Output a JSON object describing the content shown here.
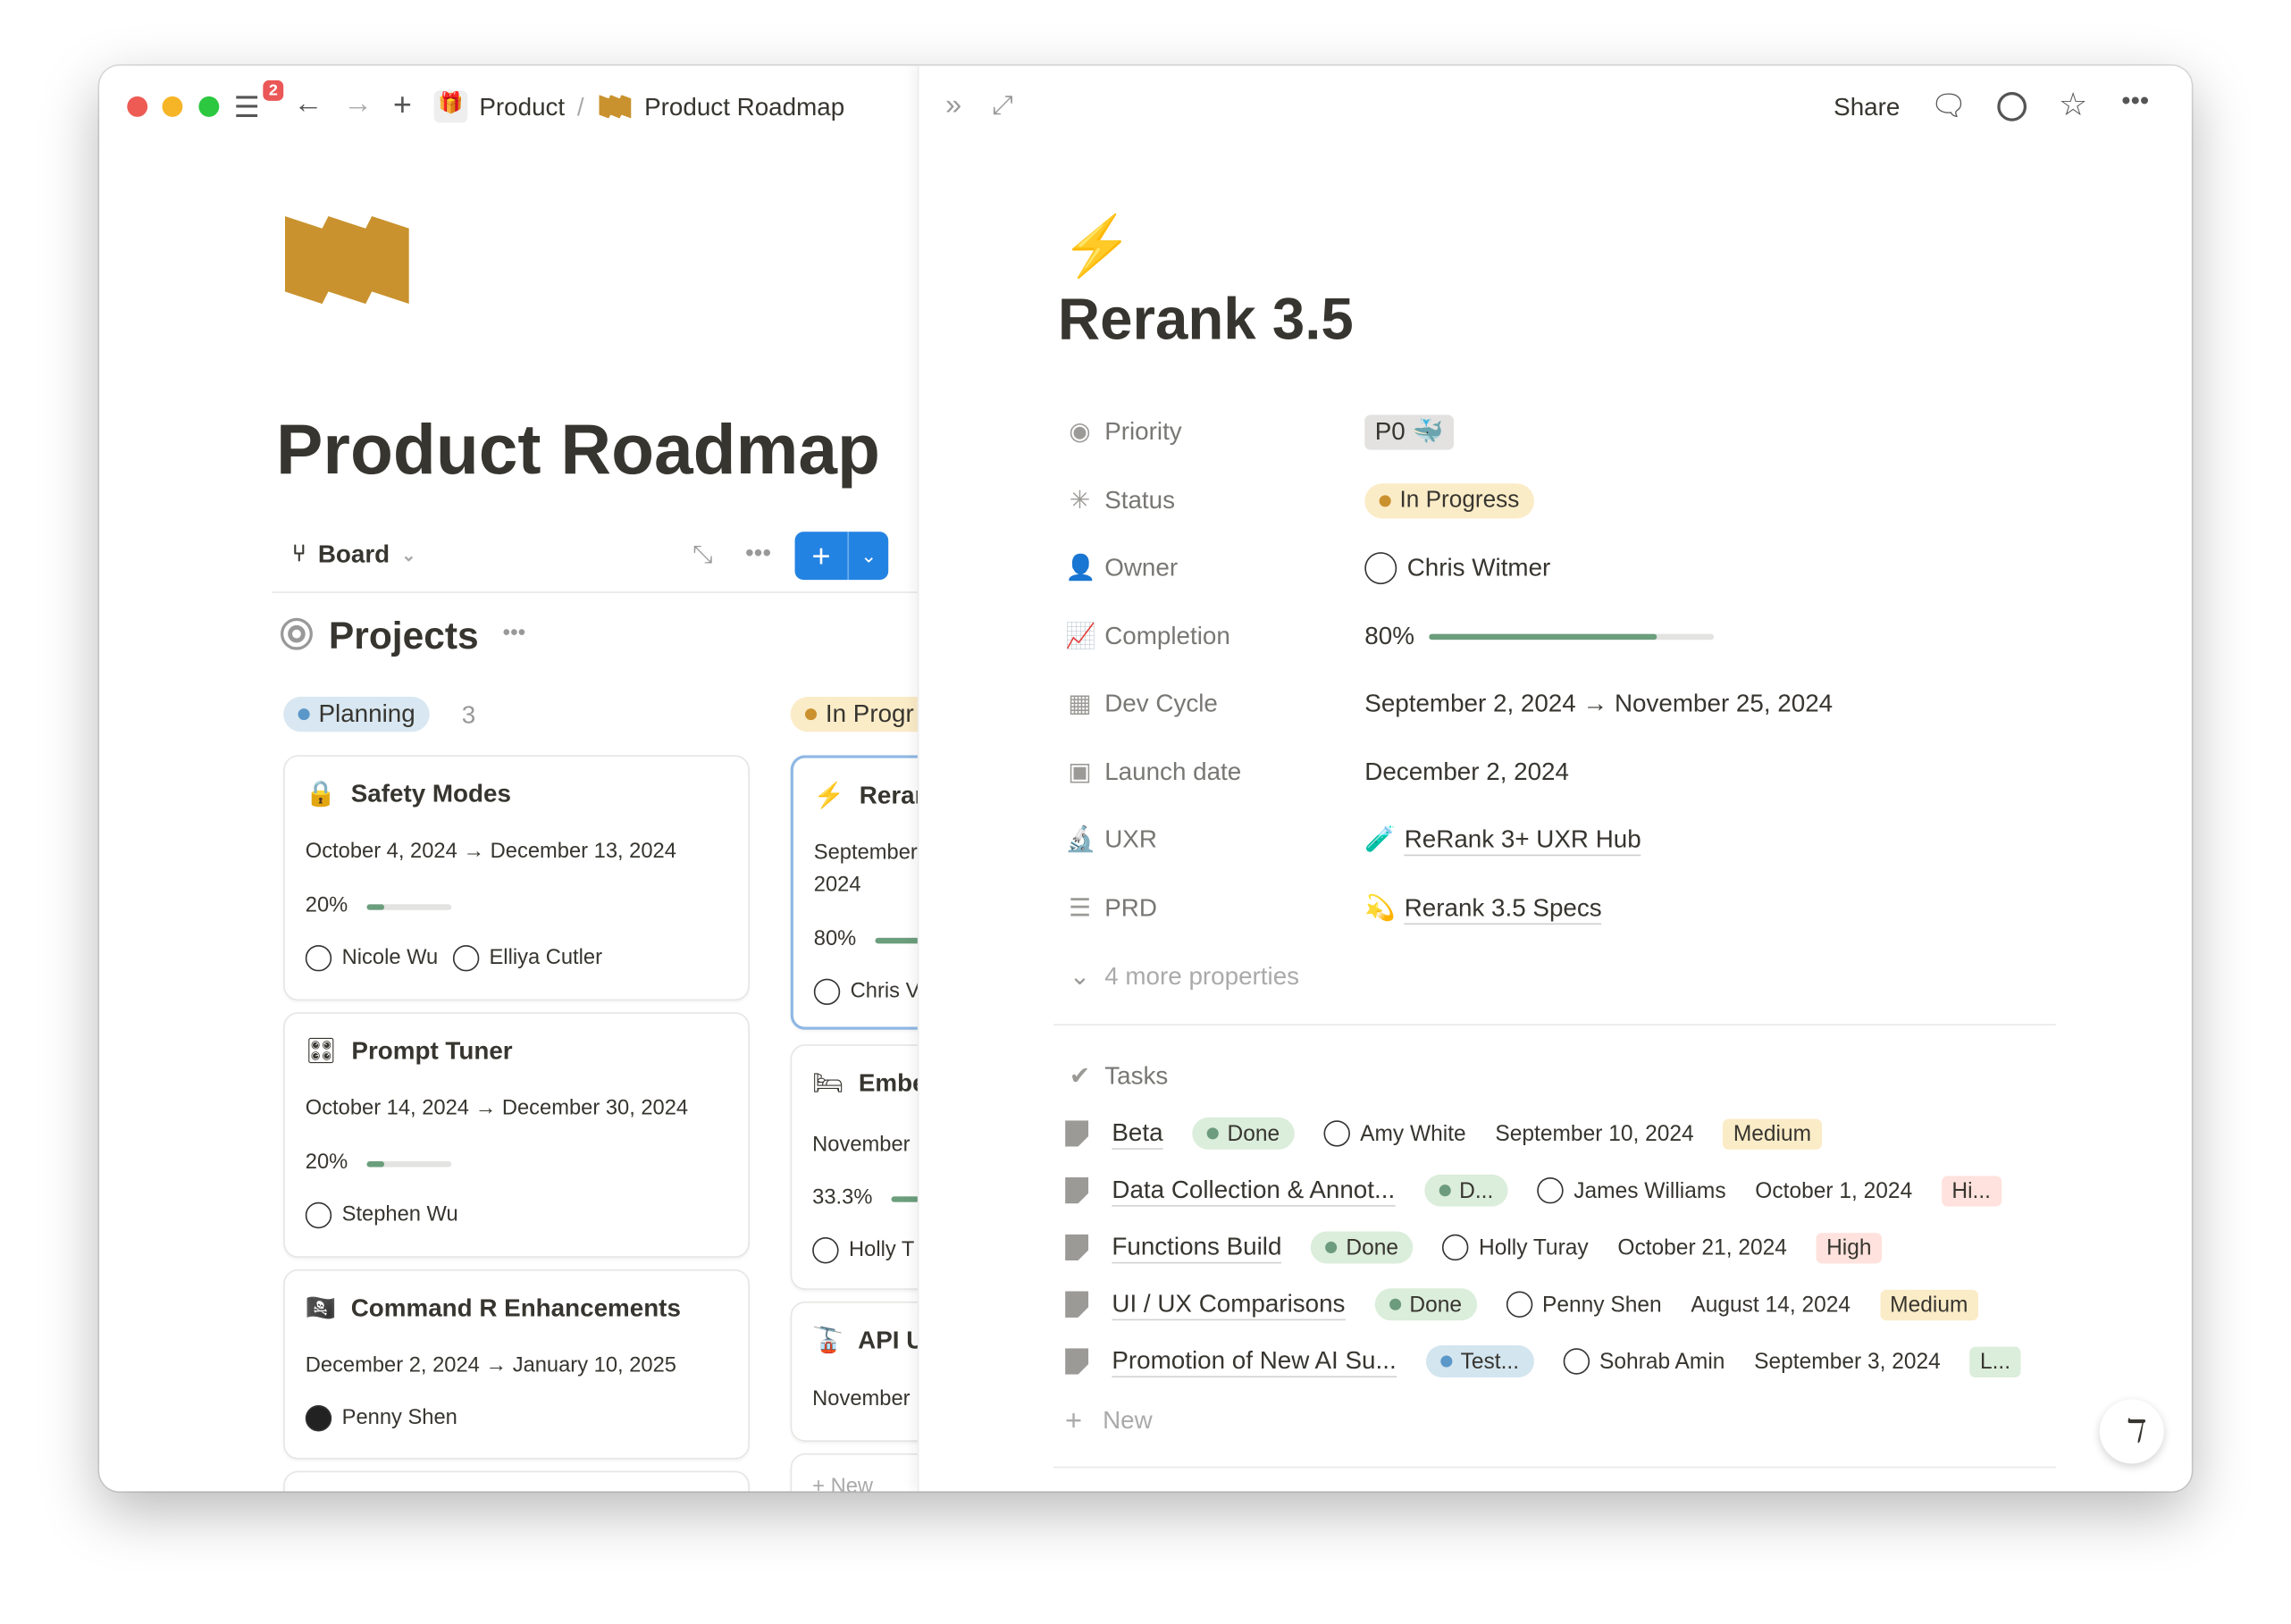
{
  "titlebar": {
    "notification_count": "2",
    "breadcrumb": [
      "Product",
      "Product Roadmap"
    ],
    "breadcrumb_sep": "/",
    "share": "Share"
  },
  "left": {
    "page_title": "Product Roadmap",
    "view": "Board",
    "section_title": "Projects",
    "groups": [
      {
        "label": "Planning",
        "count": "3",
        "color": "#5b97c9",
        "bg": "#d8e7f1"
      },
      {
        "label": "In Progr",
        "color": "#cb912f",
        "bg": "#fbecc8"
      }
    ],
    "planning_cards": [
      {
        "icon": "🔒",
        "title": "Safety Modes",
        "dates": "October 4, 2024 → December 13, 2024",
        "progress_label": "20%",
        "progress": 0.2,
        "people": [
          "Nicole Wu",
          "Elliya Cutler"
        ]
      },
      {
        "icon": "🎛",
        "title": "Prompt Tuner",
        "dates": "October 14, 2024 → December 30, 2024",
        "progress_label": "20%",
        "progress": 0.2,
        "people": [
          "Stephen Wu"
        ]
      },
      {
        "icon": "🏴‍☠️",
        "title": "Command R Enhancements",
        "dates": "December 2, 2024 → January 10, 2025",
        "people": [
          "Penny Shen"
        ]
      }
    ],
    "progress_cards": [
      {
        "icon": "⚡",
        "title": "Reran",
        "dates": "September",
        "dates2": "2024",
        "progress_label": "80%",
        "progress": 0.8,
        "person": "Chris V"
      },
      {
        "icon": "🛏",
        "title": "Embe",
        "dates": "November",
        "progress_label": "33.3%",
        "progress": 0.333,
        "person": "Holly T"
      },
      {
        "icon": "🚡",
        "title": "API U",
        "dates": "November"
      }
    ],
    "new_label": "New"
  },
  "page": {
    "icon": "⚡",
    "title": "Rerank 3.5",
    "properties": [
      {
        "label": "Priority",
        "value": "P0 🐳"
      },
      {
        "label": "Status",
        "value": "In Progress"
      },
      {
        "label": "Owner",
        "value": "Chris Witmer"
      },
      {
        "label": "Completion",
        "value": "80%",
        "progress": 0.8
      },
      {
        "label": "Dev Cycle",
        "value": "September 2, 2024 → November 25, 2024"
      },
      {
        "label": "Launch date",
        "value": "December 2, 2024"
      },
      {
        "label": "UXR",
        "value": "ReRank 3+ UXR Hub"
      },
      {
        "label": "PRD",
        "value": "Rerank 3.5 Specs"
      }
    ],
    "more_properties": "4 more properties",
    "tasks_label": "Tasks",
    "tasks": [
      {
        "name": "Beta",
        "status": "Done",
        "status_kind": "done",
        "assignee": "Amy White",
        "date": "September 10, 2024",
        "priority": "Medium",
        "priority_kind": "medium"
      },
      {
        "name": "Data Collection & Annot...",
        "status": "D...",
        "status_kind": "done",
        "assignee": "James Williams",
        "date": "October 1, 2024",
        "priority": "Hi...",
        "priority_kind": "high"
      },
      {
        "name": "Functions Build",
        "status": "Done",
        "status_kind": "done",
        "assignee": "Holly Turay",
        "date": "October 21, 2024",
        "priority": "High",
        "priority_kind": "high"
      },
      {
        "name": "UI / UX Comparisons",
        "status": "Done",
        "status_kind": "done",
        "assignee": "Penny Shen",
        "date": "August 14, 2024",
        "priority": "Medium",
        "priority_kind": "medium"
      },
      {
        "name": "Promotion of New AI Su...",
        "status": "Test...",
        "status_kind": "testing",
        "assignee": "Sohrab Amin",
        "date": "September 3, 2024",
        "priority": "L...",
        "priority_kind": "low"
      }
    ],
    "new_task": "New"
  },
  "colors": {
    "accent": "#2383e2",
    "done_bg": "#dbeddb",
    "done_dot": "#6c9b7d",
    "test_bg": "#d3e5ef",
    "test_dot": "#5b97c9",
    "medium_bg": "#fbecc8",
    "high_bg": "#ffe2dd",
    "low_bg": "#dbeddb",
    "progress": "#6b9e7c"
  }
}
